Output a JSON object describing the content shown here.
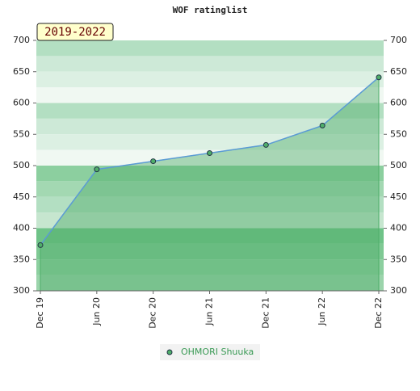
{
  "chart_data": {
    "type": "area",
    "title": "WOF ratinglist",
    "annotation": "2019-2022",
    "categories": [
      "Dec 19",
      "Jun 20",
      "Dec 20",
      "Jun 21",
      "Dec 21",
      "Jun 22",
      "Dec 22"
    ],
    "series": [
      {
        "name": "OHMORI Shuuka",
        "color": "#4fae6a",
        "values": [
          373,
          494,
          507,
          520,
          533,
          564,
          641
        ]
      }
    ],
    "ylim": [
      300,
      700
    ],
    "yticks": [
      300,
      350,
      400,
      450,
      500,
      550,
      600,
      650,
      700
    ],
    "y2lim": [
      300,
      700
    ],
    "y2ticks": [
      300,
      350,
      400,
      450,
      500,
      550,
      600,
      650,
      700
    ],
    "grid": true,
    "legend": "bottom"
  }
}
